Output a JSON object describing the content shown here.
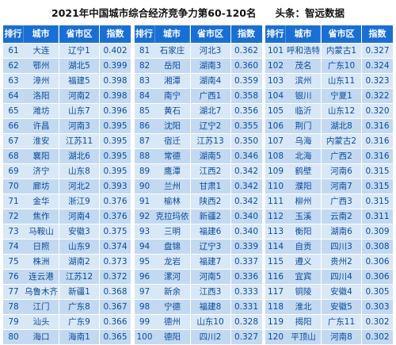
{
  "header": {
    "title": "2021年中国城市综合经济竞争力第60-120名",
    "source": "头条：智远数据"
  },
  "columns": [
    "排行",
    "城市",
    "省市区",
    "指数"
  ],
  "colors": {
    "header_bg": "#1a6fd4",
    "row_light": "#d9e8f7",
    "row_dark": "#c2d9f1",
    "text": "#0a4a9c"
  },
  "blocks": [
    {
      "rows": [
        {
          "rank": "61",
          "city": "大连",
          "prov": "辽宁1",
          "index": "0.402"
        },
        {
          "rank": "62",
          "city": "鄂州",
          "prov": "湖北5",
          "index": "0.399"
        },
        {
          "rank": "63",
          "city": "漳州",
          "prov": "福建5",
          "index": "0.398"
        },
        {
          "rank": "64",
          "city": "洛阳",
          "prov": "河南2",
          "index": "0.398"
        },
        {
          "rank": "65",
          "city": "潍坊",
          "prov": "山东7",
          "index": "0.396"
        },
        {
          "rank": "66",
          "city": "许昌",
          "prov": "河南3",
          "index": "0.395"
        },
        {
          "rank": "67",
          "city": "淮安",
          "prov": "江苏11",
          "index": "0.395"
        },
        {
          "rank": "68",
          "city": "襄阳",
          "prov": "湖北6",
          "index": "0.395"
        },
        {
          "rank": "69",
          "city": "济宁",
          "prov": "山东8",
          "index": "0.395"
        },
        {
          "rank": "70",
          "city": "廊坊",
          "prov": "河北2",
          "index": "0.393"
        },
        {
          "rank": "71",
          "city": "金华",
          "prov": "浙江9",
          "index": "0.376"
        },
        {
          "rank": "72",
          "city": "焦作",
          "prov": "河南4",
          "index": "0.376"
        },
        {
          "rank": "73",
          "city": "马鞍山",
          "prov": "安徽3",
          "index": "0.375"
        },
        {
          "rank": "74",
          "city": "日照",
          "prov": "山东9",
          "index": "0.374"
        },
        {
          "rank": "75",
          "city": "株洲",
          "prov": "湖南2",
          "index": "0.373"
        },
        {
          "rank": "76",
          "city": "连云港",
          "prov": "江苏12",
          "index": "0.372"
        },
        {
          "rank": "77",
          "city": "乌鲁木齐",
          "prov": "新疆1",
          "index": "0.368"
        },
        {
          "rank": "78",
          "city": "江门",
          "prov": "广东8",
          "index": "0.367"
        },
        {
          "rank": "79",
          "city": "汕头",
          "prov": "广东9",
          "index": "0.366"
        },
        {
          "rank": "80",
          "city": "海口",
          "prov": "海南1",
          "index": "0.365"
        }
      ]
    },
    {
      "rows": [
        {
          "rank": "81",
          "city": "石家庄",
          "prov": "河北3",
          "index": "0.362"
        },
        {
          "rank": "82",
          "city": "岳阳",
          "prov": "湖南3",
          "index": "0.360"
        },
        {
          "rank": "83",
          "city": "湘潭",
          "prov": "湖南4",
          "index": "0.359"
        },
        {
          "rank": "84",
          "city": "南宁",
          "prov": "广西1",
          "index": "0.358"
        },
        {
          "rank": "85",
          "city": "黄石",
          "prov": "湖北7",
          "index": "0.356"
        },
        {
          "rank": "86",
          "city": "沈阳",
          "prov": "辽宁2",
          "index": "0.355"
        },
        {
          "rank": "87",
          "city": "宿迁",
          "prov": "江苏13",
          "index": "0.350"
        },
        {
          "rank": "88",
          "city": "常德",
          "prov": "湖南5",
          "index": "0.346"
        },
        {
          "rank": "89",
          "city": "鹰潭",
          "prov": "江西2",
          "index": "0.342"
        },
        {
          "rank": "90",
          "city": "兰州",
          "prov": "甘肃1",
          "index": "0.342"
        },
        {
          "rank": "91",
          "city": "榆林",
          "prov": "陕西2",
          "index": "0.342"
        },
        {
          "rank": "92",
          "city": "克拉玛依",
          "prov": "新疆2",
          "index": "0.340"
        },
        {
          "rank": "93",
          "city": "三明",
          "prov": "福建6",
          "index": "0.340"
        },
        {
          "rank": "94",
          "city": "盘锦",
          "prov": "辽宁3",
          "index": "0.339"
        },
        {
          "rank": "95",
          "city": "龙岩",
          "prov": "福建7",
          "index": "0.337"
        },
        {
          "rank": "96",
          "city": "漯河",
          "prov": "河南5",
          "index": "0.336"
        },
        {
          "rank": "97",
          "city": "新余",
          "prov": "江西3",
          "index": "0.333"
        },
        {
          "rank": "98",
          "city": "宁德",
          "prov": "福建8",
          "index": "0.331"
        },
        {
          "rank": "99",
          "city": "德州",
          "prov": "山东10",
          "index": "0.328"
        },
        {
          "rank": "100",
          "city": "德阳",
          "prov": "四川2",
          "index": "0.327"
        }
      ]
    },
    {
      "rows": [
        {
          "rank": "101",
          "city": "呼和浩特",
          "prov": "内蒙古1",
          "index": "0.327"
        },
        {
          "rank": "102",
          "city": "茂名",
          "prov": "广东10",
          "index": "0.324"
        },
        {
          "rank": "103",
          "city": "滨州",
          "prov": "山东11",
          "index": "0.323"
        },
        {
          "rank": "104",
          "city": "银川",
          "prov": "宁夏1",
          "index": "0.322"
        },
        {
          "rank": "105",
          "city": "临沂",
          "prov": "山东12",
          "index": "0.320"
        },
        {
          "rank": "106",
          "city": "荆门",
          "prov": "湖北8",
          "index": "0.316"
        },
        {
          "rank": "107",
          "city": "乌海",
          "prov": "内蒙古2",
          "index": "0.316"
        },
        {
          "rank": "108",
          "city": "北海",
          "prov": "广西2",
          "index": "0.316"
        },
        {
          "rank": "109",
          "city": "鹤壁",
          "prov": "河南6",
          "index": "0.315"
        },
        {
          "rank": "110",
          "city": "濮阳",
          "prov": "河南7",
          "index": "0.315"
        },
        {
          "rank": "111",
          "city": "柳州",
          "prov": "广西3",
          "index": "0.315"
        },
        {
          "rank": "112",
          "city": "玉溪",
          "prov": "云南2",
          "index": "0.311"
        },
        {
          "rank": "113",
          "city": "衡阳",
          "prov": "湖南6",
          "index": "0.309"
        },
        {
          "rank": "114",
          "city": "自贡",
          "prov": "四川3",
          "index": "0.308"
        },
        {
          "rank": "115",
          "city": "遵义",
          "prov": "贵州2",
          "index": "0.306"
        },
        {
          "rank": "116",
          "city": "宜宾",
          "prov": "四川4",
          "index": "0.306"
        },
        {
          "rank": "117",
          "city": "铜陵",
          "prov": "安徽4",
          "index": "0.305"
        },
        {
          "rank": "118",
          "city": "淮北",
          "prov": "安徽5",
          "index": "0.303"
        },
        {
          "rank": "119",
          "city": "揭阳",
          "prov": "广东11",
          "index": "0.302"
        },
        {
          "rank": "120",
          "city": "平顶山",
          "prov": "河南8",
          "index": "0.302"
        }
      ]
    }
  ]
}
